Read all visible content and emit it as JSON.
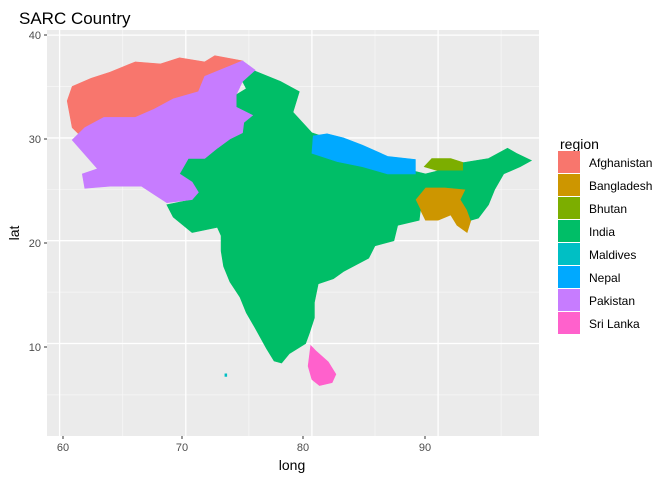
{
  "title": "SARC Country",
  "axes": {
    "x": {
      "label": "long",
      "ticks": [
        "60",
        "70",
        "80",
        "90"
      ]
    },
    "y": {
      "label": "lat",
      "ticks": [
        "10",
        "20",
        "30",
        "40"
      ]
    }
  },
  "legend": {
    "title": "region",
    "placement": "right",
    "items": [
      {
        "label": "Afghanistan",
        "color": "#F8766D"
      },
      {
        "label": "Bangladesh",
        "color": "#CD9600"
      },
      {
        "label": "Bhutan",
        "color": "#7CAE00"
      },
      {
        "label": "India",
        "color": "#00BE67"
      },
      {
        "label": "Maldives",
        "color": "#00BFC4"
      },
      {
        "label": "Nepal",
        "color": "#00A9FF"
      },
      {
        "label": "Pakistan",
        "color": "#C77CFF"
      },
      {
        "label": "Sri Lanka",
        "color": "#FF61CC"
      }
    ]
  },
  "chart_data": {
    "type": "map",
    "title": "SARC Country",
    "xlabel": "long",
    "ylabel": "lat",
    "xlim": [
      59,
      98
    ],
    "ylim": [
      1,
      40.5
    ],
    "grid": true,
    "regions": [
      {
        "name": "Afghanistan",
        "polygons": [
          [
            [
              61,
              31
            ],
            [
              60.6,
              33.6
            ],
            [
              61,
              35
            ],
            [
              62.5,
              35.8
            ],
            [
              64,
              36.4
            ],
            [
              66,
              37.4
            ],
            [
              68,
              37.2
            ],
            [
              69.5,
              37.8
            ],
            [
              71.5,
              37.4
            ],
            [
              72.3,
              38
            ],
            [
              74.5,
              37.5
            ],
            [
              73.5,
              37
            ],
            [
              71.5,
              36
            ],
            [
              71,
              34.5
            ],
            [
              70,
              33.8
            ],
            [
              69.5,
              32.5
            ],
            [
              69,
              31.5
            ],
            [
              67,
              31
            ],
            [
              66,
              29.5
            ],
            [
              64,
              29.4
            ],
            [
              62,
              29.8
            ]
          ]
        ]
      },
      {
        "name": "Bangladesh",
        "polygons": [
          [
            [
              88.5,
              26.5
            ],
            [
              89,
              25.2
            ],
            [
              88.2,
              24
            ],
            [
              88.6,
              23
            ],
            [
              89,
              22
            ],
            [
              90,
              22
            ],
            [
              91,
              22.5
            ],
            [
              91.5,
              21.5
            ],
            [
              92.3,
              20.8
            ],
            [
              92.6,
              22
            ],
            [
              92.3,
              23
            ],
            [
              91.8,
              24
            ],
            [
              92.2,
              25
            ],
            [
              90.5,
              25.2
            ],
            [
              89.8,
              26
            ]
          ]
        ]
      },
      {
        "name": "Bhutan",
        "polygons": [
          [
            [
              88.9,
              27.2
            ],
            [
              89.5,
              28
            ],
            [
              91,
              28
            ],
            [
              92,
              27.6
            ],
            [
              92,
              26.8
            ],
            [
              90,
              26.8
            ]
          ]
        ]
      },
      {
        "name": "India",
        "polygons": [
          [
            [
              74.5,
              37
            ],
            [
              77.5,
              35.5
            ],
            [
              79,
              34.5
            ],
            [
              78.5,
              32.5
            ],
            [
              80,
              30.5
            ],
            [
              81.2,
              30
            ],
            [
              82,
              28.7
            ],
            [
              83.5,
              27.5
            ],
            [
              86,
              27
            ],
            [
              88,
              26.8
            ],
            [
              89,
              26.5
            ],
            [
              90,
              26.8
            ],
            [
              92,
              26.8
            ],
            [
              92,
              27.6
            ],
            [
              94,
              28
            ],
            [
              95.5,
              29
            ],
            [
              96.2,
              28.5
            ],
            [
              97.4,
              27.8
            ],
            [
              96.5,
              27.2
            ],
            [
              95.2,
              26.5
            ],
            [
              94.5,
              25
            ],
            [
              94,
              23.5
            ],
            [
              93.2,
              22.2
            ],
            [
              92.6,
              22
            ],
            [
              92.3,
              23
            ],
            [
              91.8,
              24
            ],
            [
              92.2,
              25
            ],
            [
              90.5,
              25.2
            ],
            [
              89,
              25.2
            ],
            [
              88.2,
              24
            ],
            [
              88.6,
              23
            ],
            [
              88.5,
              22
            ],
            [
              86.8,
              21.5
            ],
            [
              86.5,
              20
            ],
            [
              85,
              19.5
            ],
            [
              84.5,
              18.3
            ],
            [
              82.5,
              17
            ],
            [
              81.7,
              16.3
            ],
            [
              80.5,
              15.8
            ],
            [
              80.2,
              14
            ],
            [
              80.2,
              12.5
            ],
            [
              79.8,
              11
            ],
            [
              79.5,
              10
            ],
            [
              78.2,
              9
            ],
            [
              77.6,
              8.1
            ],
            [
              77,
              8.3
            ],
            [
              76.4,
              9.5
            ],
            [
              75.5,
              11.5
            ],
            [
              74.8,
              13
            ],
            [
              74.3,
              14.5
            ],
            [
              73.5,
              16
            ],
            [
              73,
              17.5
            ],
            [
              72.8,
              19
            ],
            [
              72.8,
              20.5
            ],
            [
              72.5,
              21.3
            ],
            [
              70.5,
              20.8
            ],
            [
              69,
              22.3
            ],
            [
              68.5,
              23.5
            ],
            [
              70.5,
              24
            ],
            [
              71,
              24.7
            ],
            [
              70.5,
              25.7
            ],
            [
              69.5,
              26.5
            ],
            [
              70.2,
              28
            ],
            [
              71.5,
              28
            ],
            [
              72.5,
              29
            ],
            [
              73.5,
              29.9
            ],
            [
              74.5,
              30.5
            ],
            [
              74.6,
              31.5
            ],
            [
              75.3,
              32.2
            ],
            [
              74,
              33
            ],
            [
              74,
              34.2
            ],
            [
              74.8,
              34.8
            ],
            [
              74.5,
              35.5
            ]
          ]
        ]
      },
      {
        "name": "Maldives",
        "polygons": [
          [
            [
              73.1,
              7.05
            ],
            [
              73.25,
              7.05
            ],
            [
              73.25,
              6.8
            ],
            [
              73.1,
              6.8
            ]
          ]
        ]
      },
      {
        "name": "Nepal",
        "polygons": [
          [
            [
              80.1,
              30.2
            ],
            [
              81.2,
              30.4
            ],
            [
              82.5,
              30
            ],
            [
              84,
              29.3
            ],
            [
              86,
              28.2
            ],
            [
              88.2,
              27.9
            ],
            [
              88.2,
              26.5
            ],
            [
              86,
              26.5
            ],
            [
              84,
              27.2
            ],
            [
              82,
              27.7
            ],
            [
              80,
              28.5
            ]
          ]
        ]
      },
      {
        "name": "Pakistan",
        "polygons": [
          [
            [
              61,
              29.8
            ],
            [
              62,
              31
            ],
            [
              63.5,
              32
            ],
            [
              66,
              32
            ],
            [
              67.5,
              32.8
            ],
            [
              69,
              33.8
            ],
            [
              71,
              34.5
            ],
            [
              71.5,
              36
            ],
            [
              73.5,
              37
            ],
            [
              74.5,
              37.5
            ],
            [
              75.5,
              36.6
            ],
            [
              74.5,
              35.5
            ],
            [
              74,
              34.2
            ],
            [
              74,
              33
            ],
            [
              75.3,
              32.2
            ],
            [
              74.6,
              31.5
            ],
            [
              74.5,
              30.5
            ],
            [
              73.5,
              29.9
            ],
            [
              72.5,
              29
            ],
            [
              71.5,
              28
            ],
            [
              70.2,
              28
            ],
            [
              69.5,
              26.5
            ],
            [
              70.5,
              25.7
            ],
            [
              71,
              24.7
            ],
            [
              70.5,
              24
            ],
            [
              68.5,
              23.7
            ],
            [
              67.5,
              24.5
            ],
            [
              66.5,
              25.3
            ],
            [
              64,
              25.3
            ],
            [
              62,
              25.1
            ],
            [
              61.8,
              26.5
            ],
            [
              63,
              27
            ]
          ]
        ]
      },
      {
        "name": "Sri Lanka",
        "polygons": [
          [
            [
              79.9,
              9.8
            ],
            [
              80.3,
              9.3
            ],
            [
              81.3,
              8.2
            ],
            [
              81.9,
              7
            ],
            [
              81.6,
              6.2
            ],
            [
              80.6,
              5.9
            ],
            [
              80,
              6.5
            ],
            [
              79.7,
              7.8
            ]
          ]
        ]
      }
    ]
  }
}
